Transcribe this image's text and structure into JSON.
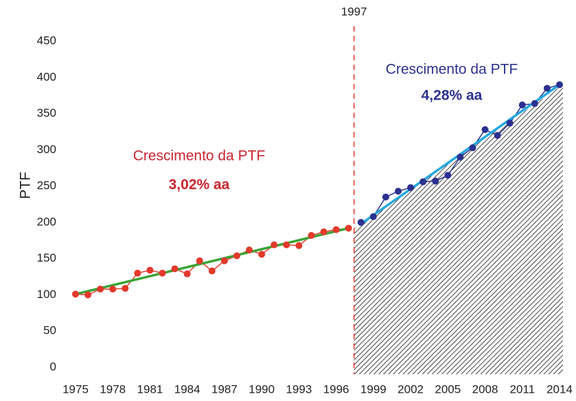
{
  "chart_data": {
    "type": "line",
    "ylabel": "PTF",
    "xlim": [
      1975,
      2014
    ],
    "xticks": [
      1975,
      1978,
      1981,
      1984,
      1987,
      1990,
      1993,
      1996,
      1999,
      2002,
      2005,
      2008,
      2011,
      2014
    ],
    "ylim": [
      0,
      450
    ],
    "yticks": [
      0,
      50,
      100,
      150,
      200,
      250,
      300,
      350,
      400,
      450
    ],
    "divider": 1997,
    "series": [
      {
        "color": "#e2392b",
        "x": [
          1975,
          1976,
          1977,
          1978,
          1979,
          1980,
          1981,
          1982,
          1983,
          1984,
          1985,
          1986,
          1987,
          1988,
          1989,
          1990,
          1991,
          1992,
          1993,
          1994,
          1995,
          1996,
          1997
        ],
        "values": [
          101,
          100,
          108,
          108,
          109,
          130,
          134,
          130,
          136,
          129,
          147,
          133,
          147,
          154,
          162,
          156,
          169,
          169,
          168,
          182,
          187,
          190,
          192
        ]
      },
      {
        "color": "#2b3190",
        "x": [
          1998,
          1999,
          2000,
          2001,
          2002,
          2003,
          2004,
          2005,
          2006,
          2007,
          2008,
          2009,
          2010,
          2011,
          2012,
          2013,
          2014
        ],
        "values": [
          200,
          208,
          235,
          243,
          248,
          256,
          257,
          265,
          290,
          303,
          328,
          320,
          337,
          362,
          364,
          385,
          390
        ]
      }
    ],
    "trends": [
      {
        "color": "#3aa335",
        "x": [
          1975,
          1997
        ],
        "values": [
          101,
          192
        ],
        "label": "Crescimento da PTF",
        "rate": "3,02% aa",
        "label_color": "#c8242f"
      },
      {
        "color": "#22a8e0",
        "x": [
          1998,
          2014
        ],
        "values": [
          198,
          390
        ],
        "label": "Crescimento da PTF",
        "rate": "4,28% aa",
        "label_color": "#2b3190"
      }
    ]
  }
}
